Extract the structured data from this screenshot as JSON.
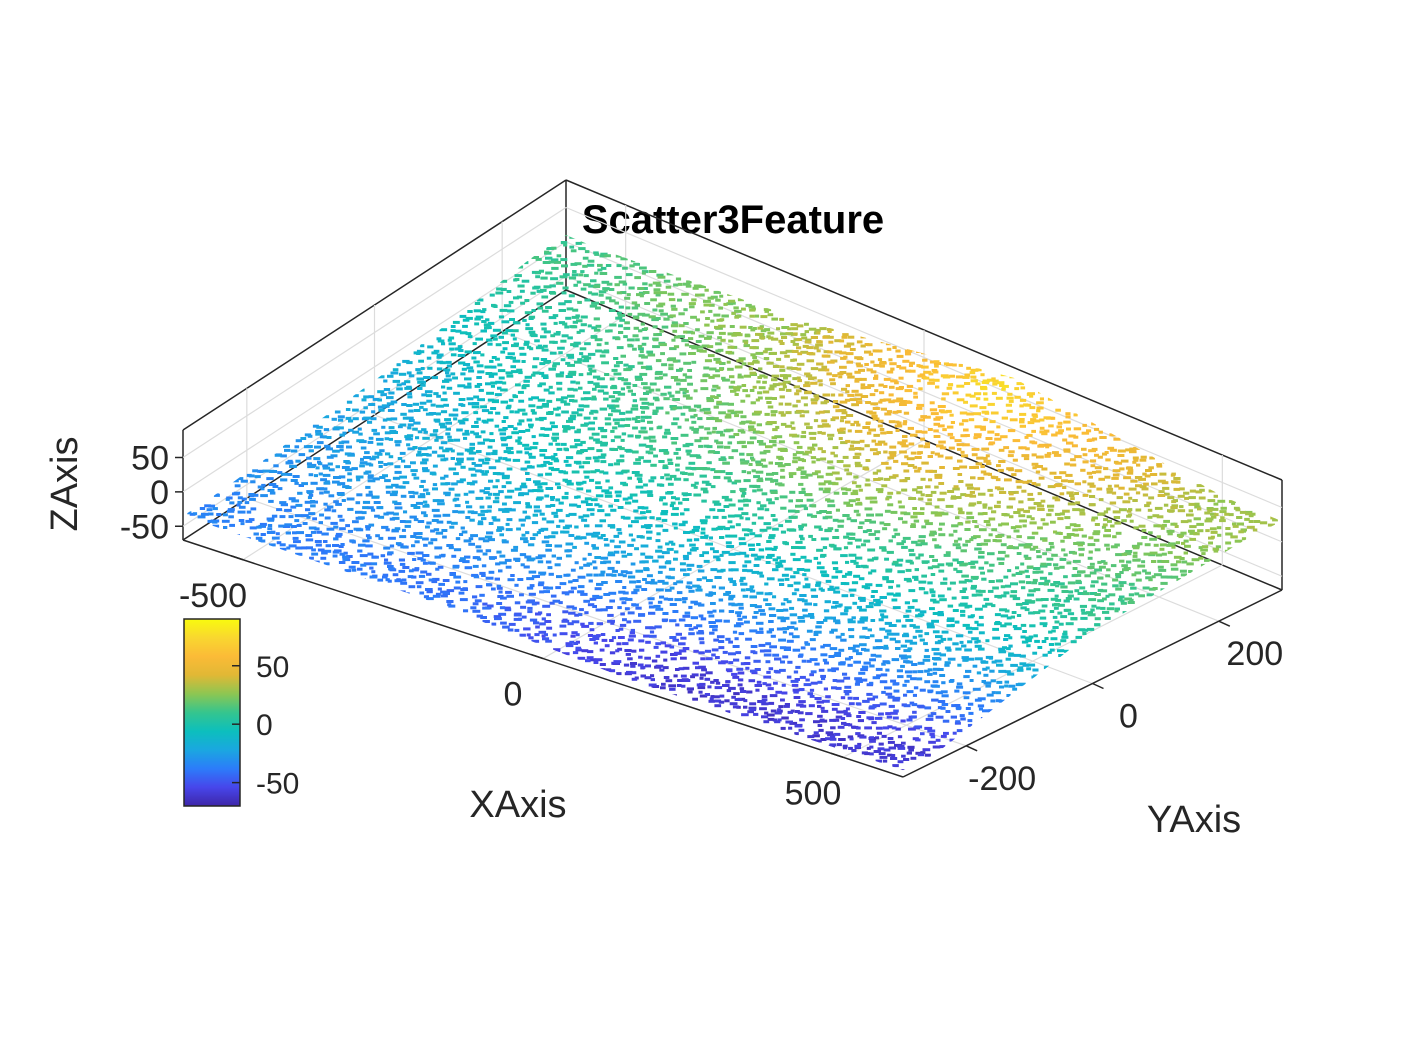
{
  "chart_data": {
    "type": "scatter",
    "title": "Scatter3Feature",
    "xlabel": "XAxis",
    "ylabel": "YAxis",
    "zlabel": "ZAxis",
    "xlim": [
      -600,
      600
    ],
    "ylim": [
      -300,
      300
    ],
    "zlim": [
      -70,
      90
    ],
    "xticks": [
      -500,
      0,
      500
    ],
    "yticks": [
      -200,
      0,
      200
    ],
    "zticks": [
      -50,
      0,
      50
    ],
    "xtick_labels": [
      "-500",
      "0",
      "500"
    ],
    "ytick_labels": [
      "-200",
      "0",
      "200"
    ],
    "ztick_labels": [
      "-50",
      "0",
      "50"
    ],
    "grid": true,
    "colormap": "parula",
    "colormap_stops": [
      "#3e26a8",
      "#4746eb",
      "#2c7cfa",
      "#1aa7e0",
      "#0cbfbd",
      "#35c58e",
      "#8dc652",
      "#e1b835",
      "#fbbb37",
      "#f9d72f",
      "#f9fb0e"
    ],
    "colorbar": {
      "limits": [
        -70,
        90
      ],
      "ticks": [
        -50,
        0,
        50
      ],
      "tick_labels": [
        "-50",
        "0",
        "50"
      ],
      "placement": "lower-left"
    },
    "surface_description": "dense point cloud of terrain; elevation colored by z",
    "surface_control_points": [
      {
        "x": -550,
        "y": 250,
        "z": 10
      },
      {
        "x": -550,
        "y": 0,
        "z": -20
      },
      {
        "x": -550,
        "y": -250,
        "z": -35
      },
      {
        "x": -200,
        "y": 250,
        "z": 30
      },
      {
        "x": -200,
        "y": 0,
        "z": 5
      },
      {
        "x": -200,
        "y": -250,
        "z": -40
      },
      {
        "x": 150,
        "y": 250,
        "z": 75
      },
      {
        "x": 150,
        "y": 0,
        "z": 10
      },
      {
        "x": 150,
        "y": -250,
        "z": -60
      },
      {
        "x": 500,
        "y": 250,
        "z": 30
      },
      {
        "x": 500,
        "y": 0,
        "z": 5
      },
      {
        "x": 500,
        "y": -250,
        "z": -60
      }
    ]
  }
}
